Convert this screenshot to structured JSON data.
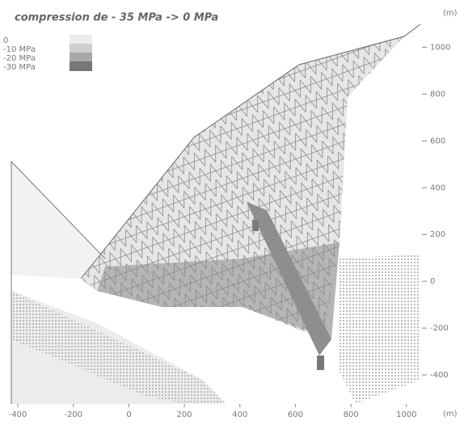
{
  "chart_data": {
    "type": "contour",
    "title": "compression de - 35 MPa -> 0 MPa",
    "legend": [
      {
        "name": "0",
        "color": "#ececec"
      },
      {
        "name": "-10 MPa",
        "color": "#cfcfcf"
      },
      {
        "name": "-20 MPa",
        "color": "#a9a9a9"
      },
      {
        "name": "-30 MPa",
        "color": "#777777"
      }
    ],
    "x_label": "(m)",
    "y_label": "(m)",
    "xlim": [
      -435,
      1050
    ],
    "ylim": [
      -500,
      1050
    ],
    "xticks": [
      -400,
      -200,
      0,
      200,
      400,
      600,
      800,
      1000
    ],
    "yticks": [
      -400,
      -200,
      0,
      200,
      400,
      600,
      800,
      1000
    ]
  }
}
